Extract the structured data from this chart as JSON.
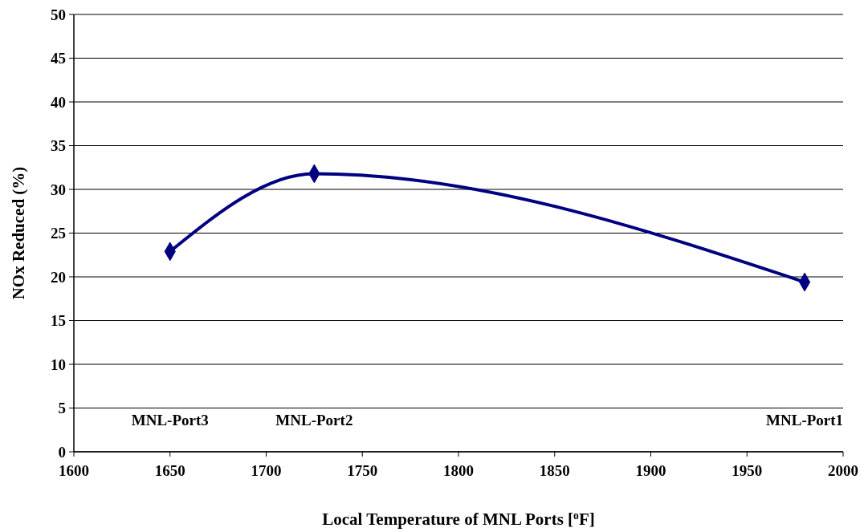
{
  "chart_data": {
    "type": "line",
    "xlabel": "Local Temperature of MNL Ports [$^{o}$F]",
    "ylabel": "NOx Reduced (%)",
    "x": [
      1650,
      1725,
      1980
    ],
    "series": [
      {
        "color": "#000080",
        "values": [
          22.9,
          31.8,
          19.4
        ]
      }
    ],
    "xlim": [
      1600,
      2000
    ],
    "xticks": [
      1600,
      1650,
      1700,
      1750,
      1800,
      1850,
      1900,
      1950,
      2000
    ],
    "ylim": [
      0,
      50
    ],
    "yticks": [
      0,
      5,
      10,
      15,
      20,
      25,
      30,
      35,
      40,
      45,
      50
    ],
    "grid": "y",
    "marker": "diamond",
    "line_style": "solid",
    "annotations": [
      "MNL-Port3",
      "MNL-Port2",
      "MNL-Port1"
    ]
  }
}
